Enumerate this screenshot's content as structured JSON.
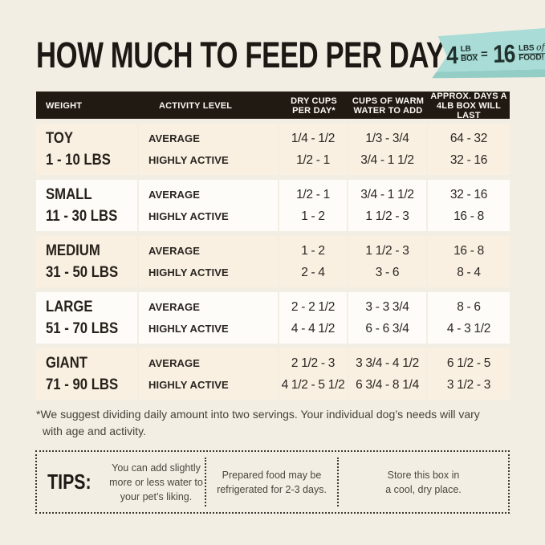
{
  "page": {
    "title": "HOW MUCH TO FEED PER DAY"
  },
  "badge": {
    "qty_box": "4",
    "unit_top1": "LB",
    "unit_bottom1": "BOX",
    "equals": "=",
    "qty_food": "16",
    "unit_top2": "LBS",
    "script_word": "of",
    "unit_bottom2": "FOOD!"
  },
  "colors": {
    "background": "#f3eee3",
    "header_bar": "#211a13",
    "row_beige": "#f9f0e2",
    "row_white": "#fdfcf8",
    "accent_teal": "#a9dcd6",
    "text_dark": "#1d1813"
  },
  "table": {
    "header": [
      {
        "lines": [
          "WEIGHT"
        ]
      },
      {
        "lines": [
          "ACTIVITY LEVEL"
        ]
      },
      {
        "lines": [
          "DRY CUPS",
          "PER DAY*"
        ]
      },
      {
        "lines": [
          "CUPS OF WARM",
          "WATER TO ADD"
        ]
      },
      {
        "lines": [
          "APPROX. DAYS A",
          "4LB BOX WILL LAST"
        ]
      }
    ],
    "rows": [
      {
        "size": "TOY",
        "range": "1 - 10 LBS",
        "activity": [
          "AVERAGE",
          "HIGHLY ACTIVE"
        ],
        "dry_cups": [
          "1/4 - 1/2",
          "1/2 - 1"
        ],
        "water": [
          "1/3 - 3/4",
          "3/4 - 1 1/2"
        ],
        "days": [
          "64 - 32",
          "32 - 16"
        ]
      },
      {
        "size": "SMALL",
        "range": "11 - 30 LBS",
        "activity": [
          "AVERAGE",
          "HIGHLY ACTIVE"
        ],
        "dry_cups": [
          "1/2 - 1",
          "1 - 2"
        ],
        "water": [
          "3/4 - 1 1/2",
          "1 1/2 - 3"
        ],
        "days": [
          "32 - 16",
          "16 - 8"
        ]
      },
      {
        "size": "MEDIUM",
        "range": "31 - 50 LBS",
        "activity": [
          "AVERAGE",
          "HIGHLY ACTIVE"
        ],
        "dry_cups": [
          "1 - 2",
          "2 - 4"
        ],
        "water": [
          "1 1/2 - 3",
          "3 - 6"
        ],
        "days": [
          "16 - 8",
          "8 - 4"
        ]
      },
      {
        "size": "LARGE",
        "range": "51 - 70 LBS",
        "activity": [
          "AVERAGE",
          "HIGHLY ACTIVE"
        ],
        "dry_cups": [
          "2 - 2 1/2",
          "4 - 4 1/2"
        ],
        "water": [
          "3 - 3 3/4",
          "6 - 6 3/4"
        ],
        "days": [
          "8 - 6",
          "4 - 3 1/2"
        ]
      },
      {
        "size": "GIANT",
        "range": "71 - 90 LBS",
        "activity": [
          "AVERAGE",
          "HIGHLY ACTIVE"
        ],
        "dry_cups": [
          "2 1/2 - 3",
          "4 1/2 - 5 1/2"
        ],
        "water": [
          "3 3/4 - 4 1/2",
          "6 3/4 - 8 1/4"
        ],
        "days": [
          "6 1/2 - 5",
          "3 1/2 - 3"
        ]
      }
    ]
  },
  "footnote": {
    "line1": "*We suggest dividing daily amount into two servings. Your individual dog’s needs will vary",
    "line2": "with age and activity."
  },
  "tips": {
    "label": "TIPS:",
    "items": [
      {
        "lines": [
          "You can add slightly",
          "more or less water to",
          "your pet’s liking."
        ]
      },
      {
        "lines": [
          "Prepared food may be",
          "refrigerated for 2-3 days."
        ]
      },
      {
        "lines": [
          "Store this box in",
          "a cool, dry place."
        ]
      }
    ]
  }
}
